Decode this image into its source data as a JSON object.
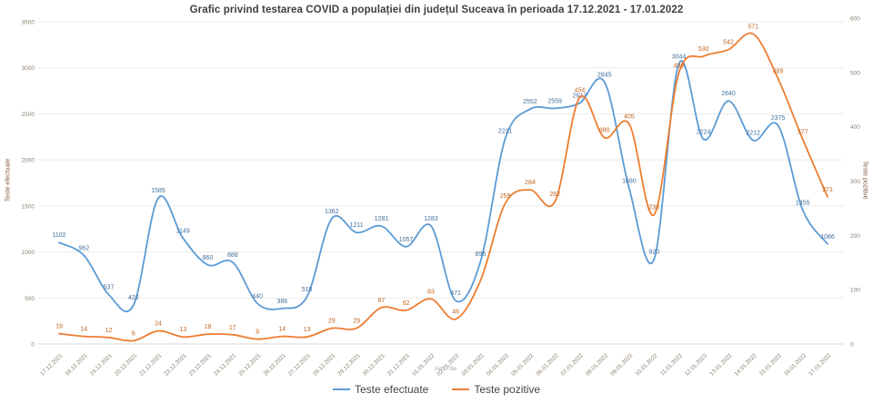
{
  "title": "Grafic privind testarea COVID a populației din județul Suceava în perioada 17.12.2021 - 17.01.2022",
  "x_axis_note": "Axis Title",
  "legend": {
    "items": [
      {
        "label": "Teste efectuate",
        "color": "#5B9BD5"
      },
      {
        "label": "Teste pozitive",
        "color": "#ED7D31"
      }
    ]
  },
  "chart_data": {
    "type": "line",
    "smoothing": true,
    "grid": true,
    "legend_position": "bottom",
    "categories": [
      "17.12.2021",
      "18.12.2021",
      "19.12.2021",
      "20.12.2021",
      "21.12.2021",
      "22.12.2021",
      "23.12.2021",
      "24.12.2021",
      "25.12.2021",
      "26.12.2021",
      "27.12.2021",
      "28.12.2021",
      "29.12.2021",
      "30.12.2021",
      "31.12.2021",
      "01.01.2022",
      "02.01.2022",
      "03.01.2022",
      "04.01.2022",
      "05.01.2022",
      "06.01.2022",
      "07.01.2022",
      "08.01.2022",
      "09.01.2022",
      "10.01.2022",
      "11.01.2022",
      "12.01.2022",
      "13.01.2022",
      "14.01.2022",
      "15.01.2022",
      "16.01.2022",
      "17.01.2022"
    ],
    "series": [
      {
        "name": "Teste efectuate",
        "axis": "left",
        "color": "#5B9BD5",
        "label_color": "#41719C",
        "values": [
          1102,
          962,
          537,
          422,
          1585,
          1149,
          860,
          888,
          440,
          386,
          515,
          1362,
          1211,
          1281,
          1057,
          1283,
          471,
          896,
          2231,
          2552,
          2559,
          2617,
          2845,
          1690,
          920,
          3044,
          2224,
          2640,
          2212,
          2375,
          1455,
          1086
        ],
        "hidden_label_indexes": []
      },
      {
        "name": "Teste pozitive",
        "axis": "right",
        "color": "#ED7D31",
        "label_color": "#C0651F",
        "values": [
          19,
          14,
          12,
          6,
          24,
          13,
          18,
          17,
          9,
          14,
          13,
          29,
          29,
          67,
          62,
          83,
          46,
          117,
          259,
          284,
          262,
          454,
          380,
          405,
          238,
          499,
          530,
          542,
          571,
          489,
          377,
          271
        ],
        "hidden_label_indexes": [
          17
        ]
      }
    ],
    "axes": {
      "left": {
        "title": "Teste efectuate",
        "min": 0,
        "max": 3500,
        "step": 500,
        "tick_labels": [
          "0",
          "500",
          "1000",
          "1500",
          "2000",
          "2500",
          "3000",
          "3500"
        ]
      },
      "right": {
        "title": "Teste pozitive",
        "min": 0,
        "max": 600,
        "step": 100,
        "tick_labels": [
          "0",
          "100",
          "200",
          "300",
          "400",
          "500",
          "600"
        ]
      }
    }
  }
}
